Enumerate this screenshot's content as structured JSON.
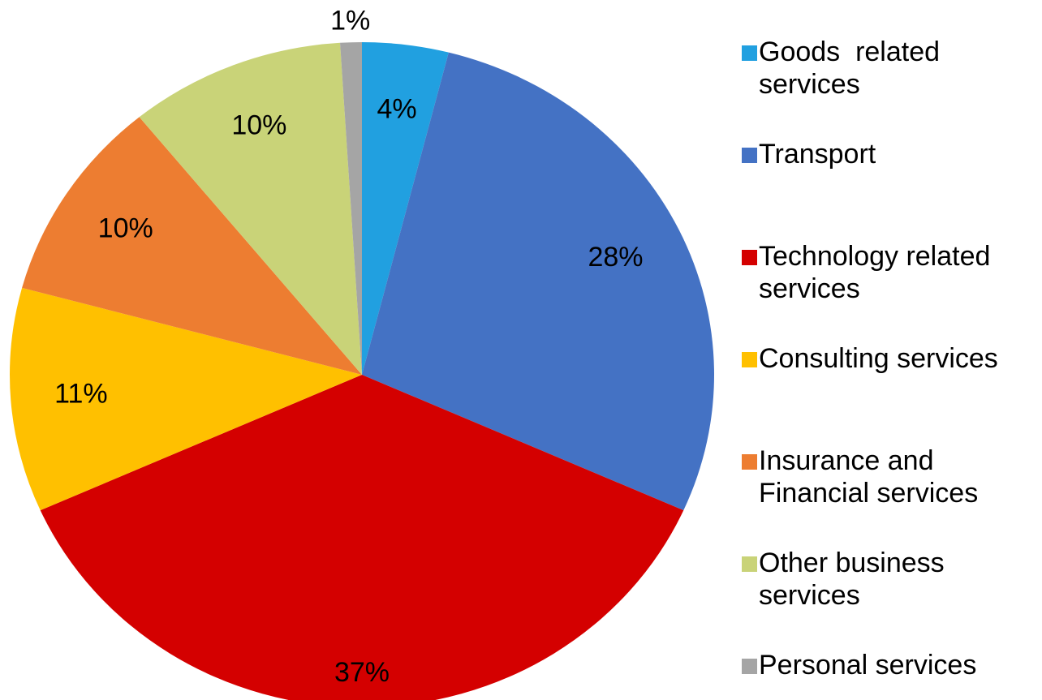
{
  "chart_data": {
    "type": "pie",
    "categories": [
      "Goods  related services",
      "Transport",
      "Technology related services",
      "Consulting services",
      "Insurance and Financial services",
      "Other business services",
      "Personal services"
    ],
    "values": [
      4,
      28,
      37,
      11,
      10,
      10,
      1
    ],
    "value_labels": [
      "4%",
      "28%",
      "37%",
      "11%",
      "10%",
      "10%",
      "1%"
    ],
    "colors": [
      "#21a0e0",
      "#4472c4",
      "#d40000",
      "#ffc000",
      "#ed7d31",
      "#c9d378",
      "#a5a5a5"
    ],
    "legend": "right"
  }
}
